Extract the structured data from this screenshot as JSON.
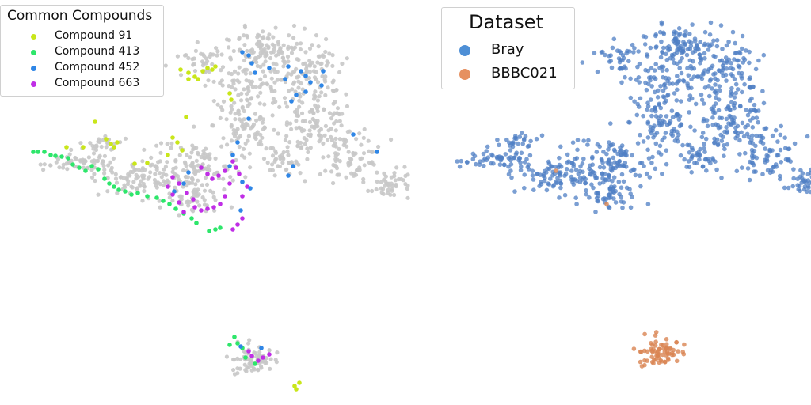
{
  "chart_data": [
    {
      "type": "scatter",
      "title": "",
      "xlabel": "",
      "ylabel": "",
      "grid": false,
      "axes_visible": false,
      "legend": {
        "title": "Common Compounds",
        "placement": "top-left",
        "entries": [
          {
            "label": "Compound 91",
            "color": "#c9e61a"
          },
          {
            "label": "Compound 413",
            "color": "#2ee66b"
          },
          {
            "label": "Compound 452",
            "color": "#2f86e6"
          },
          {
            "label": "Compound 663",
            "color": "#c02ee6"
          }
        ]
      },
      "background_color": "#c8c8c8",
      "series": [
        {
          "name": "Compound 91",
          "color": "#c9e61a",
          "points": [
            [
              228,
              88
            ],
            [
              238,
              92
            ],
            [
              246,
              97
            ],
            [
              250,
              100
            ],
            [
              256,
              90
            ],
            [
              262,
              86
            ],
            [
              268,
              88
            ],
            [
              272,
              84
            ],
            [
              238,
              100
            ],
            [
              290,
              118
            ],
            [
              292,
              126
            ],
            [
              235,
              148
            ],
            [
              218,
              174
            ],
            [
              224,
              180
            ],
            [
              230,
              190
            ],
            [
              212,
              196
            ],
            [
              134,
              176
            ],
            [
              140,
              182
            ],
            [
              144,
              186
            ],
            [
              148,
              180
            ],
            [
              120,
              154
            ],
            [
              84,
              186
            ],
            [
              105,
              186
            ],
            [
              170,
              207
            ],
            [
              186,
              206
            ],
            [
              372,
              488
            ],
            [
              378,
              484
            ],
            [
              374,
              492
            ]
          ]
        },
        {
          "name": "Compound 413",
          "color": "#2ee66b",
          "points": [
            [
              42,
              192
            ],
            [
              48,
              192
            ],
            [
              56,
              192
            ],
            [
              64,
              196
            ],
            [
              70,
              197
            ],
            [
              78,
              198
            ],
            [
              86,
              200
            ],
            [
              92,
              208
            ],
            [
              100,
              212
            ],
            [
              108,
              216
            ],
            [
              116,
              210
            ],
            [
              124,
              214
            ],
            [
              132,
              226
            ],
            [
              138,
              232
            ],
            [
              144,
              236
            ],
            [
              150,
              240
            ],
            [
              158,
              242
            ],
            [
              166,
              246
            ],
            [
              174,
              244
            ],
            [
              186,
              248
            ],
            [
              198,
              250
            ],
            [
              206,
              254
            ],
            [
              214,
              258
            ],
            [
              222,
              264
            ],
            [
              232,
              270
            ],
            [
              242,
              276
            ],
            [
              248,
              282
            ],
            [
              264,
              292
            ],
            [
              272,
              290
            ],
            [
              278,
              288
            ],
            [
              296,
              426
            ],
            [
              300,
              434
            ],
            [
              306,
              440
            ],
            [
              290,
              436
            ],
            [
              310,
              452
            ],
            [
              322,
              460
            ]
          ]
        },
        {
          "name": "Compound 452",
          "color": "#2f86e6",
          "points": [
            [
              306,
              66
            ],
            [
              314,
              70
            ],
            [
              318,
              80
            ],
            [
              340,
              86
            ],
            [
              364,
              84
            ],
            [
              380,
              90
            ],
            [
              386,
              96
            ],
            [
              392,
              104
            ],
            [
              374,
              120
            ],
            [
              368,
              128
            ],
            [
              386,
              116
            ],
            [
              360,
              100
            ],
            [
              322,
              92
            ],
            [
              408,
              90
            ],
            [
              406,
              108
            ],
            [
              300,
              180
            ],
            [
              294,
              196
            ],
            [
              290,
              210
            ],
            [
              306,
              230
            ],
            [
              316,
              238
            ],
            [
              304,
              266
            ],
            [
              238,
              218
            ],
            [
              232,
              232
            ],
            [
              220,
              242
            ],
            [
              446,
              170
            ],
            [
              476,
              192
            ],
            [
              370,
              210
            ],
            [
              364,
              222
            ],
            [
              314,
              150
            ],
            [
              330,
              440
            ],
            [
              304,
              438
            ]
          ]
        },
        {
          "name": "Compound 663",
          "color": "#c02ee6",
          "points": [
            [
              254,
              212
            ],
            [
              262,
              220
            ],
            [
              268,
              226
            ],
            [
              276,
              222
            ],
            [
              284,
              216
            ],
            [
              294,
              204
            ],
            [
              298,
              212
            ],
            [
              302,
              220
            ],
            [
              290,
              232
            ],
            [
              284,
              248
            ],
            [
              278,
              258
            ],
            [
              270,
              262
            ],
            [
              262,
              264
            ],
            [
              254,
              266
            ],
            [
              246,
              262
            ],
            [
              232,
              268
            ],
            [
              226,
              256
            ],
            [
              218,
              246
            ],
            [
              212,
              236
            ],
            [
              218,
              224
            ],
            [
              226,
              232
            ],
            [
              236,
              244
            ],
            [
              244,
              252
            ],
            [
              306,
              276
            ],
            [
              300,
              284
            ],
            [
              294,
              290
            ],
            [
              306,
              248
            ],
            [
              312,
              236
            ],
            [
              318,
              450
            ],
            [
              326,
              456
            ],
            [
              332,
              452
            ],
            [
              340,
              448
            ],
            [
              314,
              444
            ]
          ]
        }
      ]
    },
    {
      "type": "scatter",
      "title": "",
      "xlabel": "",
      "ylabel": "",
      "grid": false,
      "axes_visible": false,
      "legend": {
        "title": "Dataset",
        "placement": "top-left",
        "entries": [
          {
            "label": "Bray",
            "color": "#4e8fd6"
          },
          {
            "label": "BBBC021",
            "color": "#e69060"
          }
        ]
      },
      "series": [
        {
          "name": "Bray",
          "color": "#4f7fc4"
        },
        {
          "name": "BBBC021",
          "color": "#d98452"
        }
      ]
    }
  ]
}
